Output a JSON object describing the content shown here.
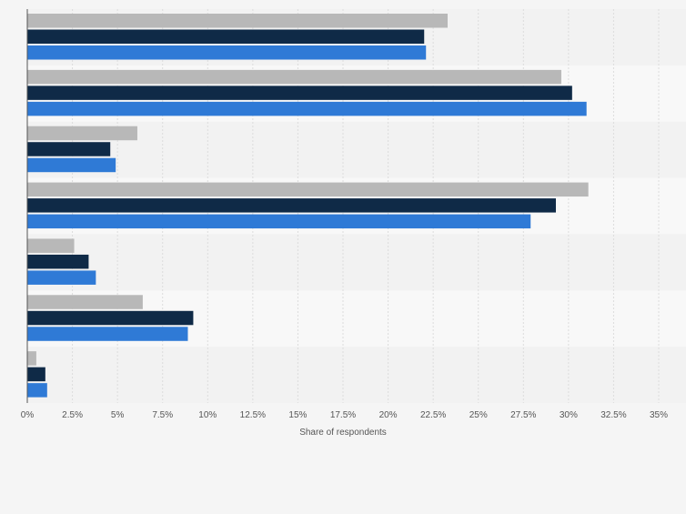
{
  "chart_data": {
    "type": "bar",
    "orientation": "horizontal",
    "categories": [
      "",
      "",
      "",
      "",
      "",
      "",
      ""
    ],
    "series": [
      {
        "color": "#b8b8b8",
        "values": [
          23.3,
          29.6,
          6.1,
          31.1,
          2.6,
          6.4,
          0.5
        ]
      },
      {
        "color": "#0f2a47",
        "values": [
          22.0,
          30.2,
          4.6,
          29.3,
          3.4,
          9.2,
          1.0
        ]
      },
      {
        "color": "#2f7ad6",
        "values": [
          22.1,
          31.0,
          4.9,
          27.9,
          3.8,
          8.9,
          1.1
        ]
      }
    ],
    "xlim": [
      0,
      35
    ],
    "xticks": [
      "0%",
      "2.5%",
      "5%",
      "7.5%",
      "10%",
      "12.5%",
      "15%",
      "17.5%",
      "20%",
      "22.5%",
      "25%",
      "27.5%",
      "30%",
      "32.5%",
      "35%"
    ],
    "xlabel": "Share of respondents",
    "grid": true,
    "band_colors": [
      "#f2f2f2",
      "#f8f8f8"
    ]
  }
}
